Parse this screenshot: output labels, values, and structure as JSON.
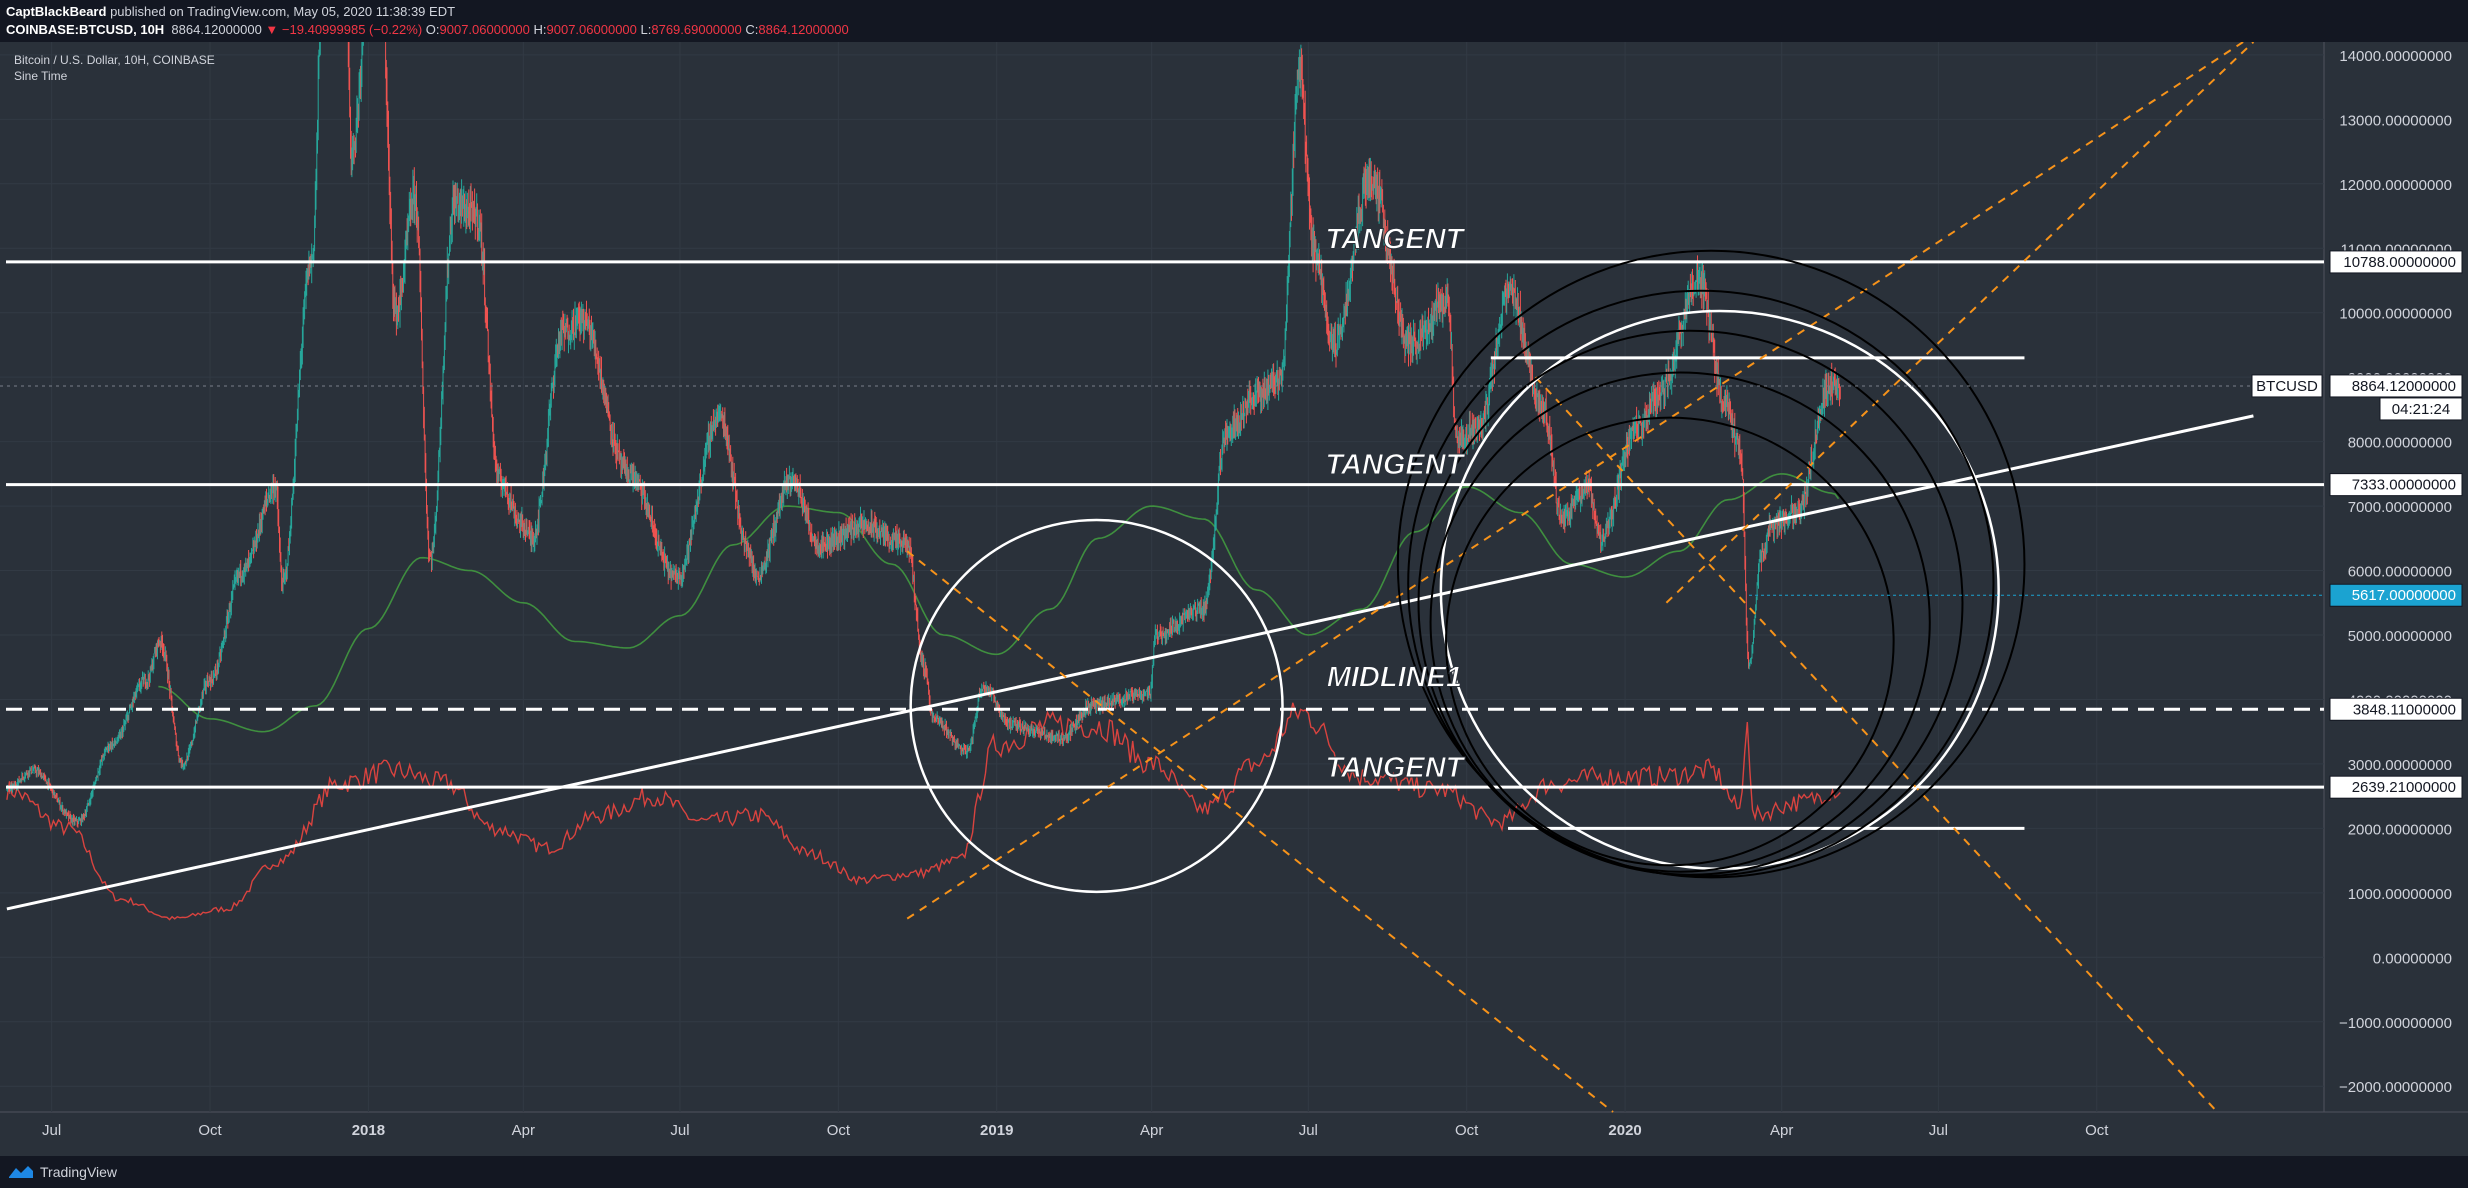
{
  "header": {
    "publisher": "CaptBlackBeard",
    "publish_text": "published on TradingView.com, May 05, 2020 11:38:39 EDT",
    "symbol": "COINBASE:BTCUSD, 10H",
    "last": "8864.12000000",
    "change_arrow": "▼",
    "change": "−19.40999985 (−0.22%)",
    "o_label": "O:",
    "o": "9007.06000000",
    "h_label": "H:",
    "h": "9007.06000000",
    "l_label": "L:",
    "l": "8769.69000000",
    "c_label": "C:",
    "c": "8864.12000000"
  },
  "legend": {
    "title": "Bitcoin / U.S. Dollar, 10H, COINBASE",
    "indicator": "Sine Time"
  },
  "footer": {
    "brand": "TradingView",
    "logo_icon": "tradingview-logo-icon"
  },
  "colors": {
    "background": "#2a313a",
    "up": "#26a69a",
    "down": "#ef5350",
    "sine": "#3f8f3f",
    "red_series": "#d9433f",
    "fib": "#f7931a",
    "white": "#ffffff",
    "black": "#000000",
    "axis_text": "#d1d4dc",
    "highlight": "#1ba3d1"
  },
  "chart_data": {
    "type": "candlestick",
    "title": "Bitcoin / U.S. Dollar, 10H, COINBASE",
    "ylim": [
      -2400,
      14200
    ],
    "y_ticks": [
      14000,
      13000,
      12000,
      11000,
      10000,
      9000,
      8000,
      7000,
      6000,
      5000,
      4000,
      3000,
      2000,
      1000,
      0,
      -1000,
      -2000
    ],
    "y_tick_labels": [
      "14000.00000000",
      "13000.00000000",
      "12000.00000000",
      "11000.00000000",
      "10000.00000000",
      "9000.00000000",
      "8000.00000000",
      "7000.00000000",
      "6000.00000000",
      "5000.00000000",
      "4000.00000000",
      "3000.00000000",
      "2000.00000000",
      "1000.00000000",
      "0.00000000",
      "−1000.00000000",
      "−2000.00000000"
    ],
    "x_ticks": [
      {
        "label": "Jul",
        "date": "2017-07-01"
      },
      {
        "label": "Oct",
        "date": "2017-10-01"
      },
      {
        "label": "2018",
        "date": "2018-01-01"
      },
      {
        "label": "Apr",
        "date": "2018-04-01"
      },
      {
        "label": "Jul",
        "date": "2018-07-01"
      },
      {
        "label": "Oct",
        "date": "2018-10-01"
      },
      {
        "label": "2019",
        "date": "2019-01-01"
      },
      {
        "label": "Apr",
        "date": "2019-04-01"
      },
      {
        "label": "Jul",
        "date": "2019-07-01"
      },
      {
        "label": "Oct",
        "date": "2019-10-01"
      },
      {
        "label": "2020",
        "date": "2020-01-01"
      },
      {
        "label": "Apr",
        "date": "2020-04-01"
      },
      {
        "label": "Jul",
        "date": "2020-07-01"
      },
      {
        "label": "Oct",
        "date": "2020-10-01"
      }
    ],
    "price_path": [
      [
        "2017-06-05",
        2600
      ],
      [
        "2017-06-20",
        2900
      ],
      [
        "2017-07-16",
        2100
      ],
      [
        "2017-08-05",
        3300
      ],
      [
        "2017-08-25",
        4300
      ],
      [
        "2017-09-02",
        4900
      ],
      [
        "2017-09-15",
        3000
      ],
      [
        "2017-10-01",
        4300
      ],
      [
        "2017-10-20",
        6000
      ],
      [
        "2017-11-08",
        7300
      ],
      [
        "2017-11-12",
        5800
      ],
      [
        "2017-11-29",
        10800
      ],
      [
        "2017-12-07",
        16500
      ],
      [
        "2017-12-17",
        19800
      ],
      [
        "2017-12-22",
        12500
      ],
      [
        "2018-01-06",
        17000
      ],
      [
        "2018-01-17",
        10000
      ],
      [
        "2018-01-28",
        11800
      ],
      [
        "2018-02-06",
        6200
      ],
      [
        "2018-02-20",
        11700
      ],
      [
        "2018-03-05",
        11500
      ],
      [
        "2018-03-18",
        7400
      ],
      [
        "2018-04-01",
        6700
      ],
      [
        "2018-04-06",
        6500
      ],
      [
        "2018-04-24",
        9700
      ],
      [
        "2018-05-05",
        9900
      ],
      [
        "2018-06-01",
        7500
      ],
      [
        "2018-06-29",
        5900
      ],
      [
        "2018-07-24",
        8400
      ],
      [
        "2018-08-10",
        6300
      ],
      [
        "2018-08-14",
        5900
      ],
      [
        "2018-09-04",
        7400
      ],
      [
        "2018-09-20",
        6400
      ],
      [
        "2018-10-15",
        6700
      ],
      [
        "2018-11-10",
        6400
      ],
      [
        "2018-11-20",
        4500
      ],
      [
        "2018-11-25",
        3700
      ],
      [
        "2018-12-15",
        3200
      ],
      [
        "2018-12-24",
        4200
      ],
      [
        "2019-01-10",
        3600
      ],
      [
        "2019-02-08",
        3400
      ],
      [
        "2019-02-25",
        3900
      ],
      [
        "2019-03-31",
        4100
      ],
      [
        "2019-04-03",
        5000
      ],
      [
        "2019-05-01",
        5400
      ],
      [
        "2019-05-15",
        8200
      ],
      [
        "2019-06-01",
        8700
      ],
      [
        "2019-06-15",
        9000
      ],
      [
        "2019-06-26",
        13800
      ],
      [
        "2019-07-04",
        11000
      ],
      [
        "2019-07-16",
        9500
      ],
      [
        "2019-08-06",
        12100
      ],
      [
        "2019-08-29",
        9500
      ],
      [
        "2019-09-20",
        10200
      ],
      [
        "2019-09-25",
        8000
      ],
      [
        "2019-10-08",
        8200
      ],
      [
        "2019-10-26",
        10300
      ],
      [
        "2019-11-15",
        8500
      ],
      [
        "2019-11-25",
        6800
      ],
      [
        "2019-12-10",
        7300
      ],
      [
        "2019-12-18",
        6500
      ],
      [
        "2020-01-08",
        8200
      ],
      [
        "2020-01-20",
        8700
      ],
      [
        "2020-02-13",
        10500
      ],
      [
        "2020-02-28",
        8600
      ],
      [
        "2020-03-08",
        7900
      ],
      [
        "2020-03-13",
        4500
      ],
      [
        "2020-03-20",
        6200
      ],
      [
        "2020-03-26",
        6700
      ],
      [
        "2020-04-10",
        6900
      ],
      [
        "2020-04-29",
        8900
      ],
      [
        "2020-05-05",
        8864
      ]
    ],
    "sine_path": [
      [
        "2017-09-01",
        4200
      ],
      [
        "2017-10-01",
        3700
      ],
      [
        "2017-11-01",
        3500
      ],
      [
        "2017-12-01",
        3900
      ],
      [
        "2018-01-01",
        5100
      ],
      [
        "2018-02-01",
        6200
      ],
      [
        "2018-03-01",
        6000
      ],
      [
        "2018-04-01",
        5500
      ],
      [
        "2018-05-01",
        4900
      ],
      [
        "2018-06-01",
        4800
      ],
      [
        "2018-07-01",
        5300
      ],
      [
        "2018-08-01",
        6400
      ],
      [
        "2018-09-01",
        7000
      ],
      [
        "2018-10-01",
        6900
      ],
      [
        "2018-11-01",
        6100
      ],
      [
        "2018-12-01",
        5000
      ],
      [
        "2019-01-01",
        4700
      ],
      [
        "2019-02-01",
        5400
      ],
      [
        "2019-03-01",
        6500
      ],
      [
        "2019-04-01",
        7000
      ],
      [
        "2019-05-01",
        6800
      ],
      [
        "2019-06-01",
        5700
      ],
      [
        "2019-07-01",
        5000
      ],
      [
        "2019-08-01",
        5400
      ],
      [
        "2019-09-01",
        6600
      ],
      [
        "2019-10-01",
        7300
      ],
      [
        "2019-11-01",
        6900
      ],
      [
        "2019-12-01",
        6100
      ],
      [
        "2020-01-01",
        5900
      ],
      [
        "2020-02-01",
        6300
      ],
      [
        "2020-03-01",
        7100
      ],
      [
        "2020-04-01",
        7500
      ],
      [
        "2020-05-01",
        7200
      ],
      [
        "2020-05-05",
        7100
      ]
    ],
    "red_path": [
      [
        "2017-06-05",
        2600
      ],
      [
        "2017-07-10",
        2000
      ],
      [
        "2017-08-10",
        900
      ],
      [
        "2017-09-10",
        600
      ],
      [
        "2017-10-10",
        750
      ],
      [
        "2017-11-10",
        1500
      ],
      [
        "2017-12-15",
        2700
      ],
      [
        "2018-01-15",
        2900
      ],
      [
        "2018-02-15",
        2700
      ],
      [
        "2018-03-15",
        2000
      ],
      [
        "2018-04-15",
        1700
      ],
      [
        "2018-05-15",
        2200
      ],
      [
        "2018-06-15",
        2500
      ],
      [
        "2018-07-15",
        2100
      ],
      [
        "2018-08-15",
        2200
      ],
      [
        "2018-09-15",
        1600
      ],
      [
        "2018-10-15",
        1200
      ],
      [
        "2018-11-15",
        1300
      ],
      [
        "2018-12-10",
        1500
      ],
      [
        "2019-01-01",
        3300
      ],
      [
        "2019-02-01",
        3600
      ],
      [
        "2019-03-01",
        3600
      ],
      [
        "2019-04-01",
        3000
      ],
      [
        "2019-05-01",
        2300
      ],
      [
        "2019-06-01",
        3000
      ],
      [
        "2019-06-26",
        3800
      ],
      [
        "2019-08-01",
        2800
      ],
      [
        "2019-09-15",
        2600
      ],
      [
        "2019-10-20",
        2100
      ],
      [
        "2019-11-20",
        2700
      ],
      [
        "2019-12-20",
        2800
      ],
      [
        "2020-01-20",
        2800
      ],
      [
        "2020-02-20",
        2900
      ],
      [
        "2020-03-08",
        2300
      ],
      [
        "2020-03-12",
        3800
      ],
      [
        "2020-03-15",
        2200
      ],
      [
        "2020-04-10",
        2400
      ],
      [
        "2020-05-05",
        2600
      ]
    ],
    "horizontal_levels": [
      {
        "price": 10788,
        "style": "solid",
        "label": "10788.00000000"
      },
      {
        "price": 7333,
        "style": "solid",
        "label": "7333.00000000"
      },
      {
        "price": 3848.11,
        "style": "dashed",
        "label": "3848.11000000"
      },
      {
        "price": 2639.21,
        "style": "solid",
        "label": "2639.21000000"
      }
    ],
    "short_segments": [
      {
        "from": "2019-10-15",
        "to": "2020-08-20",
        "price": 9300
      },
      {
        "from": "2019-10-25",
        "to": "2020-08-20",
        "price": 2000
      }
    ],
    "trend_line": {
      "from": [
        "2017-06-05",
        750
      ],
      "to": [
        "2020-12-31",
        8400
      ]
    },
    "fib_lines": [
      {
        "from": [
          "2018-11-10",
          600
        ],
        "to": [
          "2020-12-25",
          14200
        ]
      },
      {
        "from": [
          "2020-01-25",
          5500
        ],
        "to": [
          "2020-12-31",
          14200
        ]
      },
      {
        "from": [
          "2018-11-10",
          6300
        ],
        "to": [
          "2019-12-25",
          -2400
        ]
      },
      {
        "from": [
          "2019-11-10",
          9000
        ],
        "to": [
          "2020-12-10",
          -2400
        ]
      }
    ],
    "white_circles": [
      {
        "center": [
          "2019-02-28",
          3900
        ],
        "radius_days": 108
      },
      {
        "center": [
          "2020-02-25",
          5700
        ],
        "radius_days": 162
      }
    ],
    "black_circles": [
      {
        "center": [
          "2020-01-27",
          4900
        ],
        "radius_days": 130
      },
      {
        "center": [
          "2020-02-02",
          5200
        ],
        "radius_days": 145
      },
      {
        "center": [
          "2020-02-08",
          5500
        ],
        "radius_days": 158
      },
      {
        "center": [
          "2020-02-14",
          5800
        ],
        "radius_days": 170
      },
      {
        "center": [
          "2020-02-20",
          6100
        ],
        "radius_days": 182
      }
    ],
    "annotations": [
      {
        "text": "TANGENT",
        "at": [
          "2019-08-20",
          11000
        ]
      },
      {
        "text": "TANGENT",
        "at": [
          "2019-08-20",
          7500
        ]
      },
      {
        "text": "MIDLINE1",
        "at": [
          "2019-08-20",
          4200
        ]
      },
      {
        "text": "TANGENT",
        "at": [
          "2019-08-20",
          2800
        ]
      }
    ],
    "last_price": {
      "symbol": "BTCUSD",
      "price": 8864.12,
      "price_label": "8864.12000000",
      "countdown": "04:21:24"
    },
    "marked_price": {
      "price": 5617,
      "label": "5617.00000000"
    }
  }
}
